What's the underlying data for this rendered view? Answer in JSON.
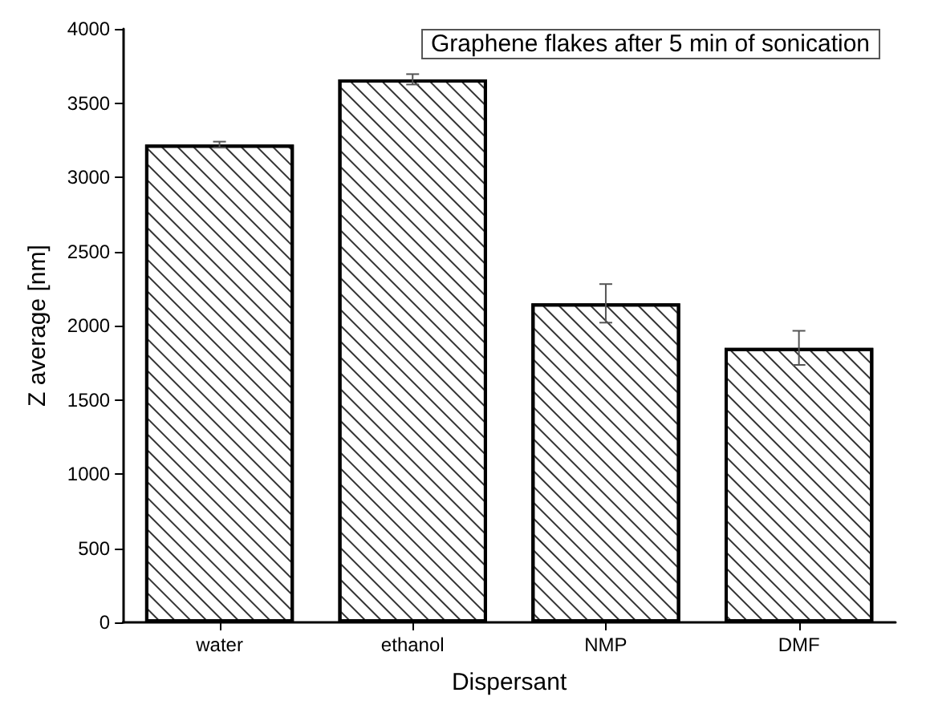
{
  "chart_data": {
    "type": "bar",
    "title": "Graphene flakes after 5 min of sonication",
    "xlabel": "Dispersant",
    "ylabel": "Z average [nm]",
    "categories": [
      "water",
      "ethanol",
      "NMP",
      "DMF"
    ],
    "values": [
      3220,
      3660,
      2150,
      1850
    ],
    "errors": [
      20,
      35,
      130,
      115
    ],
    "color": "#ffffff",
    "ylim": [
      0,
      4000
    ],
    "yticks": [
      0,
      500,
      1000,
      1500,
      2000,
      2500,
      3000,
      3500,
      4000
    ],
    "grid": false
  }
}
